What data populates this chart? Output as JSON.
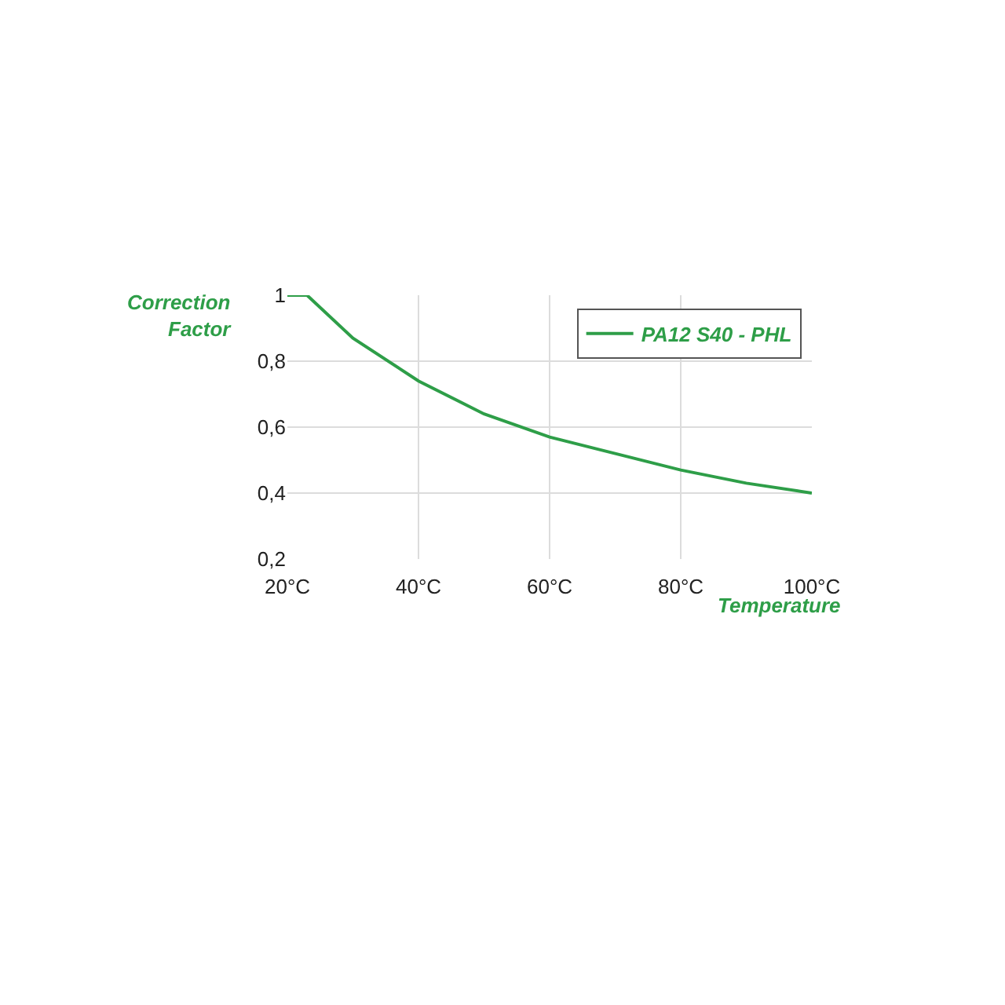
{
  "chart_data": {
    "type": "line",
    "xlabel": "Temperature",
    "ylabel": "Correction Factor",
    "x": [
      20,
      23,
      30,
      40,
      50,
      60,
      70,
      80,
      90,
      100
    ],
    "series": [
      {
        "name": "PA12 S40 - PHL",
        "color": "#2e9e48",
        "values": [
          1,
          1,
          0.87,
          0.74,
          0.64,
          0.57,
          0.52,
          0.47,
          0.43,
          0.4
        ]
      }
    ],
    "xlim": [
      20,
      100
    ],
    "xticks": [
      {
        "value": 20,
        "label": "20°C"
      },
      {
        "value": 40,
        "label": "40°C"
      },
      {
        "value": 60,
        "label": "60°C"
      },
      {
        "value": 80,
        "label": "80°C"
      },
      {
        "value": 100,
        "label": "100°C"
      }
    ],
    "ylim": [
      0.2,
      1
    ],
    "yticks": [
      {
        "value": 0.2,
        "label": "0,2"
      },
      {
        "value": 0.4,
        "label": "0,4"
      },
      {
        "value": 0.6,
        "label": "0,6"
      },
      {
        "value": 0.8,
        "label": "0,8"
      },
      1
    ],
    "grid": true,
    "legend": "top right",
    "marker": "none",
    "line_style": "solid"
  }
}
